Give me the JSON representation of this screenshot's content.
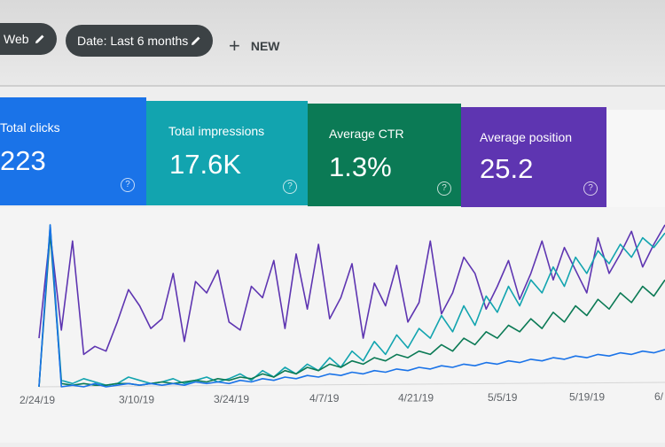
{
  "filters": {
    "search_type": "Web",
    "date_range": "Date: Last 6 months",
    "new_label": "NEW"
  },
  "metrics": [
    {
      "label": "Total clicks",
      "value": "223",
      "color": "#1a73e8"
    },
    {
      "label": "Total impressions",
      "value": "17.6K",
      "color": "#12a4af"
    },
    {
      "label": "Average CTR",
      "value": "1.3%",
      "color": "#0b7a55"
    },
    {
      "label": "Average position",
      "value": "25.2",
      "color": "#5e35b1"
    }
  ],
  "icons": [
    "pencil-icon",
    "plus-icon",
    "help-icon"
  ],
  "chart_data": {
    "type": "line",
    "x_tick_labels": [
      "2/24/19",
      "3/10/19",
      "3/24/19",
      "4/7/19",
      "4/21/19",
      "5/5/19",
      "5/19/19",
      "6/"
    ],
    "series": [
      {
        "color": "#5e35b1",
        "values": [
          30,
          95,
          35,
          90,
          20,
          25,
          22,
          40,
          60,
          50,
          36,
          42,
          70,
          28,
          65,
          58,
          72,
          40,
          35,
          62,
          55,
          78,
          36,
          82,
          48,
          88,
          42,
          55,
          76,
          30,
          64,
          50,
          75,
          40,
          52,
          90,
          45,
          58,
          80,
          70,
          48,
          62,
          78,
          54,
          70,
          90,
          66,
          86,
          72,
          58,
          92,
          70,
          82,
          96,
          74,
          88,
          100
        ]
      },
      {
        "color": "#12a4af",
        "values": [
          0,
          100,
          4,
          2,
          5,
          3,
          1,
          2,
          6,
          4,
          2,
          3,
          5,
          2,
          4,
          6,
          3,
          5,
          8,
          4,
          10,
          6,
          12,
          8,
          14,
          10,
          18,
          12,
          22,
          16,
          28,
          20,
          32,
          24,
          36,
          30,
          44,
          34,
          50,
          38,
          56,
          46,
          62,
          50,
          66,
          58,
          74,
          62,
          80,
          70,
          84,
          76,
          88,
          80,
          92,
          86,
          95
        ]
      },
      {
        "color": "#0b7a55",
        "values": [
          0,
          95,
          2,
          1,
          2,
          1,
          1,
          2,
          2,
          1,
          2,
          3,
          2,
          3,
          4,
          3,
          5,
          4,
          6,
          5,
          8,
          6,
          10,
          8,
          12,
          10,
          14,
          12,
          16,
          14,
          18,
          16,
          20,
          18,
          22,
          20,
          26,
          22,
          30,
          26,
          34,
          30,
          38,
          34,
          42,
          36,
          46,
          40,
          50,
          44,
          54,
          48,
          58,
          52,
          62,
          56,
          66
        ]
      },
      {
        "color": "#1a73e8",
        "values": [
          0,
          100,
          0,
          1,
          0,
          2,
          0,
          1,
          2,
          1,
          2,
          1,
          2,
          1,
          3,
          2,
          3,
          2,
          4,
          3,
          5,
          4,
          6,
          5,
          7,
          6,
          8,
          7,
          9,
          8,
          10,
          9,
          11,
          10,
          12,
          11,
          13,
          12,
          14,
          13,
          15,
          14,
          16,
          15,
          17,
          16,
          18,
          17,
          19,
          18,
          20,
          19,
          21,
          20,
          22,
          21,
          23
        ]
      }
    ]
  }
}
